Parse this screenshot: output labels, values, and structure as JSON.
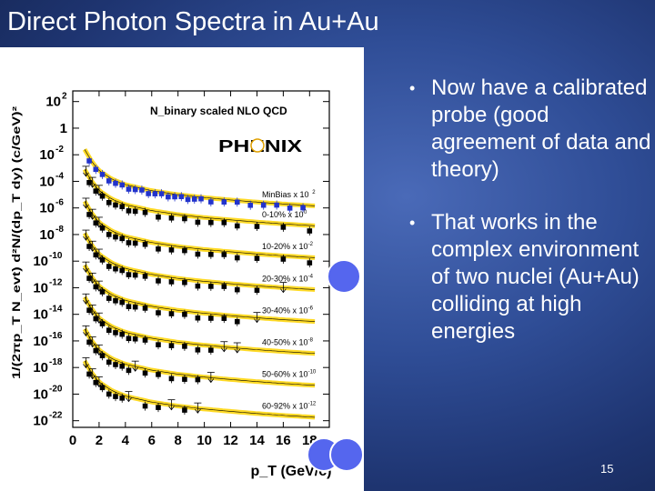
{
  "slide": {
    "title": "Direct Photon Spectra in Au+Au",
    "page_number": "15",
    "bullets": [
      {
        "text": "Now have a calibrated probe (good agreement of data and theory)"
      },
      {
        "text": "That works in the complex environment of two nuclei (Au+Au) colliding at high energies"
      }
    ]
  },
  "colors": {
    "background": "#2f4d96",
    "curve": "#ffd400",
    "data_points": "#000000",
    "minbias_points": "#2233cc",
    "marker_circles": "#5566ee"
  },
  "chart_data": {
    "type": "scatter",
    "xlabel": "p_T (GeV/c)",
    "ylabel": "1/(2πp_T N_evt) d²N/(dp_T dy) (c/GeV)²",
    "annotation": "N_binary scaled NLO QCD",
    "logo": "PHENIX",
    "y_log_scale": true,
    "xlim": [
      0,
      19.5
    ],
    "ylim": [
      -22.5,
      2.8
    ],
    "x_ticks": [
      "0",
      "2",
      "4",
      "6",
      "8",
      "10",
      "12",
      "14",
      "16",
      "18"
    ],
    "y_ticks": [
      {
        "mantissa": "10",
        "exp": "2",
        "log": 2
      },
      {
        "mantissa": "1",
        "exp": "",
        "log": 0
      },
      {
        "mantissa": "10",
        "exp": "-2",
        "log": -2
      },
      {
        "mantissa": "10",
        "exp": "-4",
        "log": -4
      },
      {
        "mantissa": "10",
        "exp": "-6",
        "log": -6
      },
      {
        "mantissa": "10",
        "exp": "-8",
        "log": -8
      },
      {
        "mantissa": "10",
        "exp": "-10",
        "log": -10
      },
      {
        "mantissa": "10",
        "exp": "-12",
        "log": -12
      },
      {
        "mantissa": "10",
        "exp": "-14",
        "log": -14
      },
      {
        "mantissa": "10",
        "exp": "-16",
        "log": -16
      },
      {
        "mantissa": "10",
        "exp": "-18",
        "log": -18
      },
      {
        "mantissa": "10",
        "exp": "-20",
        "log": -20
      },
      {
        "mantissa": "10",
        "exp": "-22",
        "log": -22
      }
    ],
    "series": [
      {
        "label": "MinBias x 10",
        "label_exp": "2",
        "anchor_log": -4.8,
        "decade": -0.2,
        "color": "#2233cc",
        "marker": "square",
        "x": [
          1.25,
          1.75,
          2.25,
          2.75,
          3.25,
          3.75,
          4.25,
          4.75,
          5.25,
          5.75,
          6.25,
          6.75,
          7.25,
          7.75,
          8.25,
          8.75,
          9.25,
          9.75,
          10.5,
          11.5,
          12.5,
          13.5,
          14.5,
          15.5,
          16.5,
          17.5
        ]
      },
      {
        "label": "0-10% x 10",
        "label_exp": "0",
        "anchor_log": -6.3,
        "decade": -0.33,
        "color": "#000000",
        "marker": "square",
        "x": [
          1.25,
          1.75,
          2.25,
          2.75,
          3.25,
          3.75,
          4.25,
          4.75,
          5.5,
          6.5,
          7.5,
          8.5,
          9.5,
          10.5,
          11.5,
          12.5,
          14.0,
          16.0,
          18.0
        ],
        "upper_limits_x": [
          1.0,
          1.5,
          2.0
        ]
      },
      {
        "label": "10-20% x 10",
        "label_exp": "-2",
        "anchor_log": -8.7,
        "decade": -0.33,
        "color": "#000000",
        "marker": "square",
        "x": [
          1.25,
          1.75,
          2.25,
          2.75,
          3.25,
          3.75,
          4.25,
          4.75,
          5.5,
          6.5,
          7.5,
          8.5,
          9.5,
          10.5,
          11.5,
          12.5,
          14.0,
          16.0,
          18.0
        ],
        "upper_limits_x": [
          1.0,
          1.5,
          2.0
        ]
      },
      {
        "label": "20-30% x 10",
        "label_exp": "-4",
        "anchor_log": -11.1,
        "decade": -0.33,
        "color": "#000000",
        "marker": "square",
        "x": [
          1.25,
          1.75,
          2.25,
          2.75,
          3.25,
          3.75,
          4.25,
          4.75,
          5.5,
          6.5,
          7.5,
          8.5,
          9.5,
          10.5,
          11.5,
          12.5,
          14.0
        ],
        "upper_limits_x": [
          1.0,
          1.5,
          2.0,
          16.0
        ]
      },
      {
        "label": "30-40% x 10",
        "label_exp": "-6",
        "anchor_log": -13.5,
        "decade": -0.33,
        "color": "#000000",
        "marker": "square",
        "x": [
          1.25,
          1.75,
          2.25,
          2.75,
          3.25,
          3.75,
          4.25,
          4.75,
          5.5,
          6.5,
          7.5,
          8.5,
          9.5,
          10.5,
          11.5,
          12.5
        ],
        "upper_limits_x": [
          1.0,
          1.5,
          2.0,
          14.0
        ]
      },
      {
        "label": "40-50% x 10",
        "label_exp": "-8",
        "anchor_log": -15.9,
        "decade": -0.33,
        "color": "#000000",
        "marker": "square",
        "x": [
          1.25,
          1.75,
          2.25,
          2.75,
          3.25,
          3.75,
          4.25,
          4.75,
          5.5,
          6.5,
          7.5,
          8.5,
          9.5,
          10.5
        ],
        "upper_limits_x": [
          1.0,
          1.5,
          2.0,
          11.5,
          12.5
        ]
      },
      {
        "label": "50-60% x 10",
        "label_exp": "-10",
        "anchor_log": -18.3,
        "decade": -0.33,
        "color": "#000000",
        "marker": "square",
        "x": [
          1.25,
          1.75,
          2.25,
          2.75,
          3.25,
          3.75,
          4.25,
          5.5,
          6.5,
          7.5,
          8.5,
          9.5
        ],
        "upper_limits_x": [
          1.0,
          1.5,
          2.0,
          4.75,
          10.5
        ]
      },
      {
        "label": "60-92% x 10",
        "label_exp": "-12",
        "anchor_log": -20.7,
        "decade": -0.33,
        "color": "#000000",
        "marker": "square",
        "x": [
          1.25,
          1.75,
          2.25,
          2.75,
          3.25,
          3.75,
          5.5,
          6.5,
          8.5
        ],
        "upper_limits_x": [
          1.0,
          1.5,
          2.0,
          4.25,
          7.5,
          9.5
        ]
      }
    ],
    "curve_shape": [
      {
        "x": 0.9,
        "dlog": 3.2
      },
      {
        "x": 1.5,
        "dlog": 2.2
      },
      {
        "x": 2.0,
        "dlog": 1.6
      },
      {
        "x": 3.0,
        "dlog": 0.95
      },
      {
        "x": 4.0,
        "dlog": 0.55
      },
      {
        "x": 6.0,
        "dlog": 0.1
      },
      {
        "x": 8.0,
        "dlog": -0.2
      },
      {
        "x": 10.0,
        "dlog": -0.42
      },
      {
        "x": 12.0,
        "dlog": -0.6
      },
      {
        "x": 14.0,
        "dlog": -0.76
      },
      {
        "x": 16.0,
        "dlog": -0.9
      },
      {
        "x": 18.5,
        "dlog": -1.05
      }
    ]
  }
}
